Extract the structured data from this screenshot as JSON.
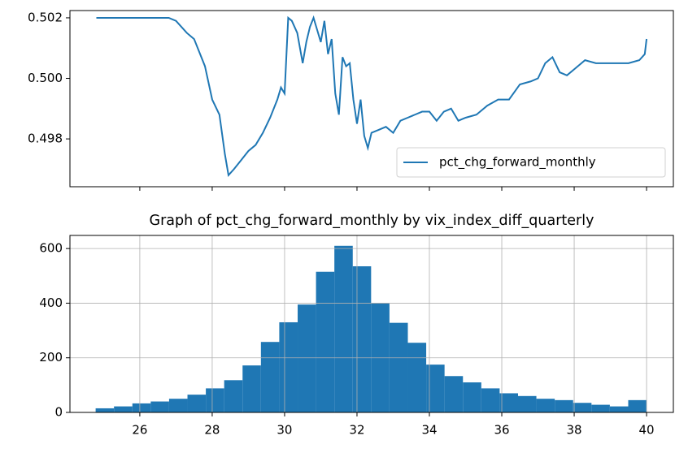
{
  "chart_data": [
    {
      "type": "line",
      "x": [
        24.8,
        25.5,
        26.2,
        26.8,
        27.0,
        27.3,
        27.5,
        27.8,
        28.0,
        28.2,
        28.35,
        28.45,
        28.6,
        28.8,
        29.0,
        29.2,
        29.4,
        29.6,
        29.8,
        29.9,
        30.0,
        30.1,
        30.2,
        30.35,
        30.5,
        30.6,
        30.7,
        30.8,
        30.9,
        31.0,
        31.1,
        31.2,
        31.3,
        31.4,
        31.5,
        31.6,
        31.7,
        31.8,
        31.9,
        32.0,
        32.1,
        32.2,
        32.3,
        32.4,
        32.6,
        32.8,
        33.0,
        33.2,
        33.4,
        33.6,
        33.8,
        34.0,
        34.2,
        34.4,
        34.6,
        34.8,
        35.0,
        35.3,
        35.6,
        35.9,
        36.2,
        36.5,
        36.8,
        37.0,
        37.2,
        37.4,
        37.6,
        37.8,
        38.0,
        38.3,
        38.6,
        38.9,
        39.2,
        39.5,
        39.8,
        39.95,
        40.0
      ],
      "series": [
        {
          "name": "pct_chg_forward_monthly",
          "color": "#1f77b4",
          "values": [
            0.502,
            0.502,
            0.502,
            0.502,
            0.5019,
            0.5015,
            0.5013,
            0.5004,
            0.4993,
            0.4988,
            0.4975,
            0.4968,
            0.497,
            0.4973,
            0.4976,
            0.4978,
            0.4982,
            0.4987,
            0.4993,
            0.4997,
            0.4995,
            0.502,
            0.5019,
            0.5015,
            0.5005,
            0.5012,
            0.5017,
            0.502,
            0.5016,
            0.5012,
            0.5019,
            0.5008,
            0.5013,
            0.4995,
            0.4988,
            0.5007,
            0.5004,
            0.5005,
            0.4993,
            0.4985,
            0.4993,
            0.4981,
            0.4977,
            0.4982,
            0.4983,
            0.4984,
            0.4982,
            0.4986,
            0.4987,
            0.4988,
            0.4989,
            0.4989,
            0.4986,
            0.4989,
            0.499,
            0.4986,
            0.4987,
            0.4988,
            0.4991,
            0.4993,
            0.4993,
            0.4998,
            0.4999,
            0.5,
            0.5005,
            0.5007,
            0.5002,
            0.5001,
            0.5003,
            0.5006,
            0.5005,
            0.5005,
            0.5005,
            0.5005,
            0.5006,
            0.5008,
            0.5013
          ]
        }
      ],
      "xlim": [
        24.07,
        40.74
      ],
      "ylim": [
        0.49642,
        0.50224
      ],
      "yticks": [
        0.498,
        {
          "value": 0.5,
          "label": "0.500"
        },
        0.502
      ],
      "legend": "lower right",
      "grid": false
    },
    {
      "type": "histogram",
      "title": "Graph of pct_chg_forward_monthly by vix_index_diff_quarterly",
      "bins": [
        24.78,
        25.287,
        25.795,
        26.302,
        26.809,
        27.317,
        27.824,
        28.331,
        28.839,
        29.346,
        29.853,
        30.361,
        30.868,
        31.375,
        31.883,
        32.39,
        32.897,
        33.405,
        33.912,
        34.419,
        34.927,
        35.434,
        35.941,
        36.449,
        36.956,
        37.463,
        37.971,
        38.478,
        38.985,
        39.493,
        40.0
      ],
      "values": [
        15,
        22,
        33,
        40,
        50,
        65,
        88,
        118,
        172,
        258,
        330,
        395,
        515,
        610,
        535,
        400,
        328,
        255,
        175,
        133,
        110,
        88,
        70,
        60,
        50,
        45,
        35,
        28,
        22,
        45
      ],
      "color": "#1f77b4",
      "xlim": [
        24.07,
        40.74
      ],
      "xticks": [
        26,
        28,
        30,
        32,
        34,
        36,
        38,
        40
      ],
      "ylim": [
        0,
        648
      ],
      "yticks": [
        0,
        200,
        400,
        600
      ],
      "grid": true
    }
  ]
}
